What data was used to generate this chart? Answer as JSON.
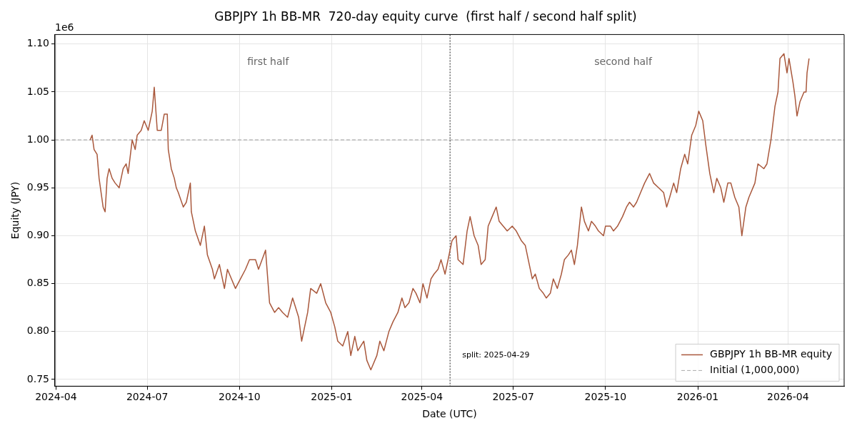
{
  "chart_data": {
    "type": "line",
    "title": "GBPJPY 1h BB-MR  720-day equity curve  (first half / second half split)",
    "xlabel": "Date (UTC)",
    "ylabel": "Equity (JPY)",
    "xlim": [
      "2024-03-31",
      "2026-05-27"
    ],
    "xticks": [
      "2024-04",
      "2024-07",
      "2024-10",
      "2025-01",
      "2025-04",
      "2025-07",
      "2025-10",
      "2026-01",
      "2026-04"
    ],
    "ylim": [
      0.743,
      1.11
    ],
    "yticks": [
      {
        "value": 0.75,
        "label": "0.75"
      },
      {
        "value": 0.8,
        "label": "0.80"
      },
      {
        "value": 0.85,
        "label": "0.85"
      },
      {
        "value": 0.9,
        "label": "0.90"
      },
      {
        "value": 0.95,
        "label": "0.95"
      },
      {
        "value": 1.0,
        "label": "1.00"
      },
      {
        "value": 1.05,
        "label": "1.05"
      },
      {
        "value": 1.1,
        "label": "1.10"
      }
    ],
    "grid": true,
    "legend": "bottom right",
    "marker": "none",
    "line_style": "solid",
    "series": [
      {
        "name": "GBPJPY 1h BB-MR equity",
        "color": "#a9583c",
        "x": [
          "2024-05-05",
          "2024-05-07",
          "2024-05-09",
          "2024-05-12",
          "2024-05-14",
          "2024-05-16",
          "2024-05-18",
          "2024-05-20",
          "2024-05-22",
          "2024-05-24",
          "2024-05-27",
          "2024-05-30",
          "2024-06-03",
          "2024-06-07",
          "2024-06-10",
          "2024-06-12",
          "2024-06-16",
          "2024-06-19",
          "2024-06-21",
          "2024-06-25",
          "2024-06-28",
          "2024-07-02",
          "2024-07-06",
          "2024-07-08",
          "2024-07-11",
          "2024-07-15",
          "2024-07-18",
          "2024-07-21",
          "2024-07-22",
          "2024-07-25",
          "2024-07-28",
          "2024-07-30",
          "2024-08-01",
          "2024-08-06",
          "2024-08-09",
          "2024-08-13",
          "2024-08-14",
          "2024-08-18",
          "2024-08-23",
          "2024-08-27",
          "2024-08-30",
          "2024-09-04",
          "2024-09-06",
          "2024-09-11",
          "2024-09-16",
          "2024-09-19",
          "2024-09-23",
          "2024-09-27",
          "2024-10-02",
          "2024-10-07",
          "2024-10-11",
          "2024-10-17",
          "2024-10-20",
          "2024-10-27",
          "2024-10-31",
          "2024-11-05",
          "2024-11-09",
          "2024-11-13",
          "2024-11-18",
          "2024-11-23",
          "2024-11-29",
          "2024-12-02",
          "2024-12-08",
          "2024-12-11",
          "2024-12-17",
          "2024-12-21",
          "2024-12-26",
          "2024-12-31",
          "2025-01-04",
          "2025-01-07",
          "2025-01-12",
          "2025-01-17",
          "2025-01-20",
          "2025-01-24",
          "2025-01-27",
          "2025-02-02",
          "2025-02-05",
          "2025-02-09",
          "2025-02-15",
          "2025-02-18",
          "2025-02-22",
          "2025-02-27",
          "2025-03-03",
          "2025-03-08",
          "2025-03-12",
          "2025-03-15",
          "2025-03-19",
          "2025-03-23",
          "2025-03-26",
          "2025-03-30",
          "2025-04-02",
          "2025-04-06",
          "2025-04-10",
          "2025-04-13",
          "2025-04-17",
          "2025-04-20",
          "2025-04-24",
          "2025-04-27",
          "2025-04-28",
          "2025-05-01",
          "2025-05-05",
          "2025-05-07",
          "2025-05-12",
          "2025-05-16",
          "2025-05-19",
          "2025-05-23",
          "2025-05-27",
          "2025-05-30",
          "2025-06-03",
          "2025-06-06",
          "2025-06-10",
          "2025-06-14",
          "2025-06-17",
          "2025-06-21",
          "2025-06-25",
          "2025-06-30",
          "2025-07-04",
          "2025-07-09",
          "2025-07-13",
          "2025-07-16",
          "2025-07-20",
          "2025-07-23",
          "2025-07-27",
          "2025-07-31",
          "2025-08-03",
          "2025-08-07",
          "2025-08-10",
          "2025-08-14",
          "2025-08-18",
          "2025-08-21",
          "2025-08-25",
          "2025-08-28",
          "2025-08-31",
          "2025-09-03",
          "2025-09-07",
          "2025-09-10",
          "2025-09-14",
          "2025-09-17",
          "2025-09-21",
          "2025-09-24",
          "2025-09-29",
          "2025-10-01",
          "2025-10-06",
          "2025-10-09",
          "2025-10-13",
          "2025-10-18",
          "2025-10-22",
          "2025-10-25",
          "2025-10-29",
          "2025-11-01",
          "2025-11-05",
          "2025-11-09",
          "2025-11-14",
          "2025-11-18",
          "2025-11-23",
          "2025-11-28",
          "2025-12-01",
          "2025-12-04",
          "2025-12-08",
          "2025-12-11",
          "2025-12-15",
          "2025-12-19",
          "2025-12-22",
          "2025-12-26",
          "2025-12-30",
          "2026-01-02",
          "2026-01-06",
          "2026-01-09",
          "2026-01-13",
          "2026-01-17",
          "2026-01-20",
          "2026-01-24",
          "2026-01-27",
          "2026-01-31",
          "2026-02-03",
          "2026-02-07",
          "2026-02-11",
          "2026-02-14",
          "2026-02-18",
          "2026-02-21",
          "2026-02-27",
          "2026-03-02",
          "2026-03-08",
          "2026-03-11",
          "2026-03-15",
          "2026-03-19",
          "2026-03-22",
          "2026-03-24",
          "2026-03-28",
          "2026-03-31",
          "2026-04-02",
          "2026-04-06",
          "2026-04-08",
          "2026-04-10",
          "2026-04-13",
          "2026-04-17",
          "2026-04-19",
          "2026-04-20",
          "2026-04-22"
        ],
        "values": [
          1.0,
          1.005,
          0.99,
          0.985,
          0.96,
          0.945,
          0.93,
          0.925,
          0.96,
          0.97,
          0.96,
          0.955,
          0.95,
          0.97,
          0.975,
          0.965,
          1.0,
          0.99,
          1.005,
          1.01,
          1.02,
          1.01,
          1.03,
          1.055,
          1.01,
          1.01,
          1.027,
          1.027,
          0.99,
          0.97,
          0.96,
          0.95,
          0.945,
          0.93,
          0.935,
          0.955,
          0.925,
          0.905,
          0.89,
          0.91,
          0.88,
          0.865,
          0.855,
          0.87,
          0.845,
          0.865,
          0.855,
          0.845,
          0.855,
          0.865,
          0.875,
          0.875,
          0.865,
          0.885,
          0.83,
          0.82,
          0.825,
          0.82,
          0.815,
          0.835,
          0.815,
          0.79,
          0.82,
          0.845,
          0.84,
          0.85,
          0.83,
          0.82,
          0.805,
          0.79,
          0.785,
          0.8,
          0.775,
          0.795,
          0.78,
          0.79,
          0.77,
          0.76,
          0.775,
          0.79,
          0.78,
          0.8,
          0.81,
          0.82,
          0.835,
          0.825,
          0.83,
          0.845,
          0.84,
          0.83,
          0.85,
          0.835,
          0.855,
          0.86,
          0.865,
          0.875,
          0.86,
          0.875,
          0.88,
          0.895,
          0.9,
          0.875,
          0.87,
          0.905,
          0.92,
          0.9,
          0.89,
          0.87,
          0.875,
          0.91,
          0.92,
          0.93,
          0.915,
          0.91,
          0.905,
          0.91,
          0.905,
          0.895,
          0.89,
          0.875,
          0.855,
          0.86,
          0.845,
          0.84,
          0.835,
          0.84,
          0.855,
          0.845,
          0.86,
          0.875,
          0.88,
          0.885,
          0.87,
          0.89,
          0.93,
          0.915,
          0.905,
          0.915,
          0.91,
          0.905,
          0.9,
          0.91,
          0.91,
          0.905,
          0.91,
          0.92,
          0.93,
          0.935,
          0.93,
          0.935,
          0.945,
          0.955,
          0.965,
          0.955,
          0.95,
          0.945,
          0.93,
          0.94,
          0.955,
          0.945,
          0.97,
          0.985,
          0.975,
          1.005,
          1.015,
          1.03,
          1.02,
          0.995,
          0.965,
          0.945,
          0.96,
          0.95,
          0.935,
          0.955,
          0.955,
          0.94,
          0.93,
          0.9,
          0.93,
          0.94,
          0.955,
          0.975,
          0.97,
          0.975,
          1.0,
          1.035,
          1.05,
          1.085,
          1.09,
          1.07,
          1.085,
          1.06,
          1.045,
          1.025,
          1.04,
          1.05,
          1.05,
          1.07,
          1.085
        ]
      }
    ],
    "ref_lines": [
      {
        "axis": "y",
        "value": 1.0,
        "label": "Initial (1,000,000)",
        "color": "#aaaaaa",
        "line_style": "dashed"
      },
      {
        "axis": "x",
        "value": "2025-04-29",
        "label": "split: 2025-04-29",
        "color": "#444444",
        "line_style": "dotted"
      }
    ],
    "annotations": [
      "1e6",
      "first half",
      "second half"
    ]
  }
}
